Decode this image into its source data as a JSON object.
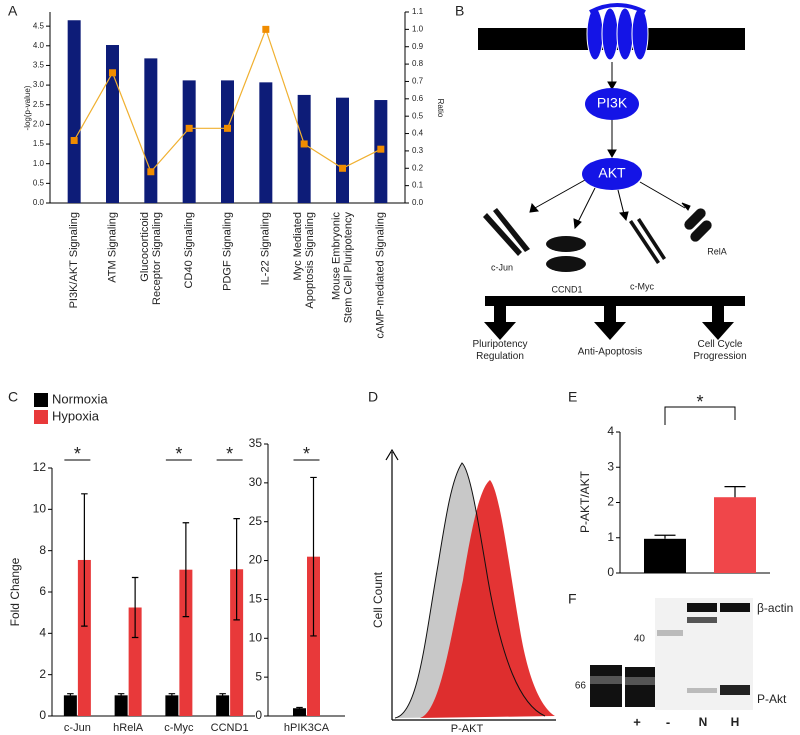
{
  "panels": [
    "A",
    "B",
    "C",
    "D",
    "E",
    "F"
  ],
  "chart_data": [
    {
      "type": "bar",
      "y_label": "-log(p-value)",
      "y2_label": "Ratio",
      "categories": [
        "PI3K/AKT Signaling",
        "ATM Signaling",
        "Glucocorticoid\nReceptor Signaling",
        "CD40 Signaling",
        "PDGF Signaling",
        "IL-22 Signaling",
        "Myc Mediated\nApoptosis Signaling",
        "Mouse Embryonic\nStem Cell Pluripotency",
        "cAMP-mediated Signaling"
      ],
      "series": [
        {
          "color": "#0d1c78",
          "values": [
            4.65,
            4.02,
            3.68,
            3.12,
            3.12,
            3.07,
            2.75,
            2.68,
            2.62
          ]
        },
        {
          "type": "line",
          "axis": "y2",
          "color": "#f08c00",
          "values": [
            0.36,
            0.75,
            0.18,
            0.43,
            0.43,
            1.0,
            0.34,
            0.2,
            0.31
          ]
        }
      ],
      "ylim": [
        0,
        4.86
      ],
      "yticks": [
        {
          "value": 0,
          "label": "0.0"
        },
        0.5,
        {
          "value": 1,
          "label": "1.0"
        },
        1.5,
        {
          "value": 2,
          "label": "2.0"
        },
        2.5,
        {
          "value": 3,
          "label": "3.0"
        },
        3.5,
        {
          "value": 4,
          "label": "4.0"
        },
        4.5
      ],
      "y2lim": [
        0,
        1.1
      ],
      "y2ticks": [
        {
          "value": 0,
          "label": "0.0"
        },
        0.1,
        0.2,
        0.3,
        0.4,
        0.5,
        0.6,
        0.7,
        0.8,
        0.9,
        {
          "value": 1,
          "label": "1.0"
        },
        1.1
      ]
    },
    {
      "type": "bar",
      "y_label": "Fold Change",
      "error_direction": "both",
      "categories": [
        "c-Jun",
        "hRelA",
        "c-Myc",
        "CCND1"
      ],
      "series": [
        {
          "name": "Normoxia",
          "color": "#000000",
          "values": [
            1,
            1,
            1,
            1
          ],
          "errors": [
            0.08,
            0.08,
            0.08,
            0.08
          ]
        },
        {
          "name": "Hypoxia",
          "color": "#e8393a",
          "values": [
            7.55,
            5.25,
            7.08,
            7.1
          ],
          "errors": [
            3.2,
            1.45,
            2.27,
            2.45
          ]
        }
      ],
      "ylim": [
        0,
        12
      ],
      "yticks": [
        0,
        2,
        4,
        6,
        8,
        10,
        12
      ],
      "annotations": [
        "*",
        "*",
        "*"
      ]
    },
    {
      "type": "bar",
      "error_direction": "both",
      "categories": [
        "hPIK3CA"
      ],
      "series": [
        {
          "color": "#000000",
          "values": [
            1
          ],
          "errors": [
            0.1
          ]
        },
        {
          "color": "#e8393a",
          "values": [
            20.5
          ],
          "errors": [
            10.2
          ]
        }
      ],
      "ylim": [
        0,
        35
      ],
      "yticks": [
        0,
        5,
        10,
        15,
        20,
        25,
        30,
        35
      ],
      "annotations": [
        "*"
      ]
    },
    {
      "type": "bar",
      "y_label": "P-AKT/AKT",
      "error_direction": "up",
      "values": [
        0.97,
        2.15
      ],
      "errors": [
        0.1,
        0.3
      ],
      "colors": [
        "#000000",
        "#f0464a"
      ],
      "ylim": [
        0,
        4
      ],
      "yticks": [
        0,
        1,
        2,
        3,
        4
      ],
      "annotations": [
        "*"
      ]
    }
  ],
  "pathway": {
    "nodes": [
      "PI3K",
      "AKT"
    ],
    "targets": [
      "c-Jun",
      "CCND1",
      "c-Myc",
      "RelA"
    ],
    "outcomes": [
      "Pluripotency\nRegulation",
      "Anti-Apoptosis",
      "Cell Cycle\nProgression"
    ]
  },
  "flow": {
    "y_label": "Cell Count",
    "x_label": "P-AKT"
  },
  "blot": {
    "bands": [
      "β-actin",
      "P-Akt"
    ],
    "markers": [
      "40",
      "66"
    ],
    "lanes": [
      "+",
      "-",
      "N",
      "H"
    ]
  }
}
